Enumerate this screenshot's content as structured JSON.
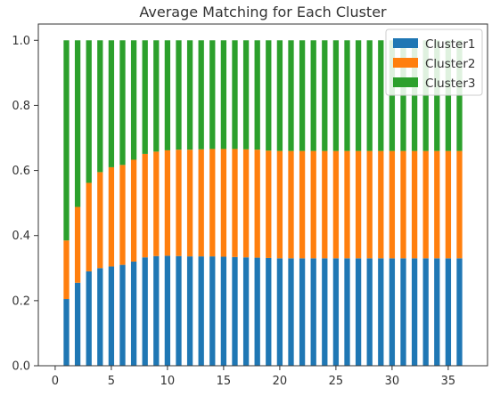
{
  "chart_data": {
    "type": "bar",
    "stacked": true,
    "title": "Average Matching for Each Cluster",
    "xlabel": "",
    "ylabel": "",
    "x": [
      1,
      2,
      3,
      4,
      5,
      6,
      7,
      8,
      9,
      10,
      11,
      12,
      13,
      14,
      15,
      16,
      17,
      18,
      19,
      20,
      21,
      22,
      23,
      24,
      25,
      26,
      27,
      28,
      29,
      30,
      31,
      32,
      33,
      34,
      35,
      36
    ],
    "xlim": [
      -1.5,
      38.5
    ],
    "ylim": [
      0,
      1.05
    ],
    "xticks": [
      0,
      5,
      10,
      15,
      20,
      25,
      30,
      35
    ],
    "yticks": [
      0.0,
      0.2,
      0.4,
      0.6,
      0.8,
      1.0
    ],
    "xtick_labels": [
      "0",
      "5",
      "10",
      "15",
      "20",
      "25",
      "30",
      "35"
    ],
    "ytick_labels": [
      "0.0",
      "0.2",
      "0.4",
      "0.6",
      "0.8",
      "1.0"
    ],
    "grid": false,
    "legend_position": "top-right",
    "series": [
      {
        "name": "Cluster1",
        "color": "#1f77b4",
        "values": [
          0.205,
          0.255,
          0.29,
          0.3,
          0.305,
          0.31,
          0.32,
          0.333,
          0.337,
          0.338,
          0.337,
          0.336,
          0.336,
          0.336,
          0.335,
          0.334,
          0.333,
          0.332,
          0.331,
          0.33,
          0.33,
          0.33,
          0.33,
          0.33,
          0.33,
          0.33,
          0.33,
          0.33,
          0.33,
          0.33,
          0.33,
          0.33,
          0.33,
          0.33,
          0.33,
          0.33
        ]
      },
      {
        "name": "Cluster2",
        "color": "#ff7f0e",
        "values": [
          0.18,
          0.233,
          0.272,
          0.295,
          0.305,
          0.307,
          0.313,
          0.318,
          0.321,
          0.324,
          0.327,
          0.328,
          0.329,
          0.33,
          0.331,
          0.332,
          0.332,
          0.332,
          0.33,
          0.33,
          0.33,
          0.33,
          0.33,
          0.33,
          0.33,
          0.33,
          0.33,
          0.33,
          0.33,
          0.33,
          0.33,
          0.33,
          0.33,
          0.33,
          0.33,
          0.33
        ]
      },
      {
        "name": "Cluster3",
        "color": "#2ca02c",
        "values": [
          0.615,
          0.512,
          0.438,
          0.405,
          0.39,
          0.383,
          0.367,
          0.349,
          0.342,
          0.338,
          0.336,
          0.336,
          0.335,
          0.334,
          0.334,
          0.334,
          0.335,
          0.336,
          0.339,
          0.34,
          0.34,
          0.34,
          0.34,
          0.34,
          0.34,
          0.34,
          0.34,
          0.34,
          0.34,
          0.34,
          0.34,
          0.34,
          0.34,
          0.34,
          0.34,
          0.34
        ]
      }
    ]
  }
}
